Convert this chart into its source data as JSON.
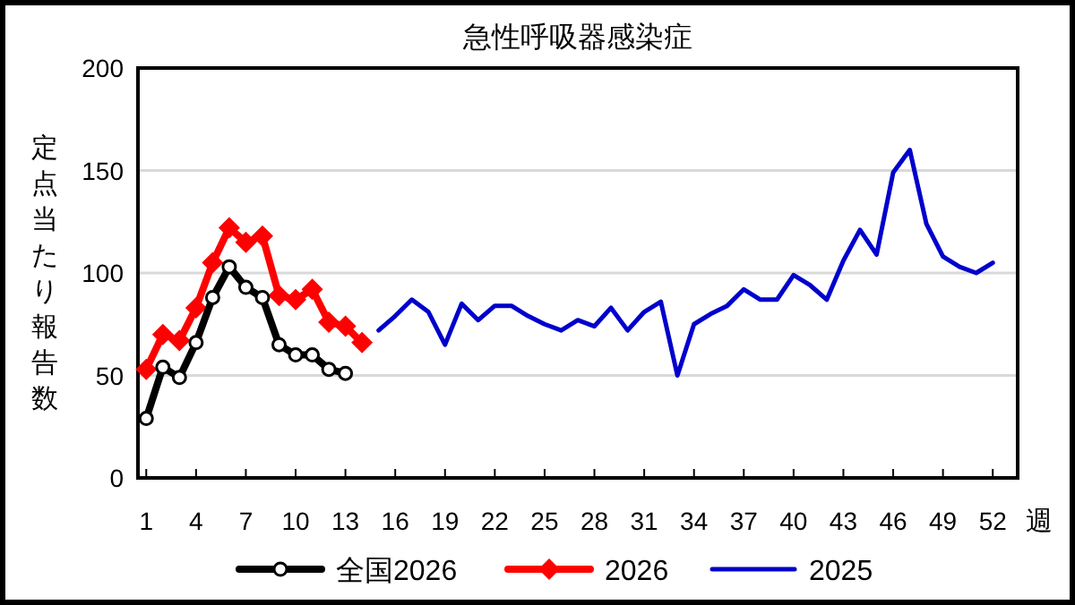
{
  "chart_data": {
    "type": "line",
    "title": "急性呼吸器感染症",
    "xlabel": "週",
    "ylabel": "定点当たり報告数",
    "xlim": [
      0.5,
      53.5
    ],
    "xticks": [
      1,
      4,
      7,
      10,
      13,
      16,
      19,
      22,
      25,
      28,
      31,
      34,
      37,
      40,
      43,
      46,
      49,
      52
    ],
    "ylim": [
      0,
      200
    ],
    "yticks": [
      0,
      50,
      100,
      150,
      200
    ],
    "grid": "y",
    "legend": "bottom",
    "series": [
      {
        "name": "全国2026",
        "color": "#000000",
        "marker": "circle",
        "x": [
          1,
          2,
          3,
          4,
          5,
          6,
          7,
          8,
          9,
          10,
          11,
          12,
          13
        ],
        "values": [
          29,
          54,
          49,
          66,
          88,
          103,
          93,
          88,
          65,
          60,
          60,
          53,
          51
        ]
      },
      {
        "name": "2026",
        "color": "#ff0000",
        "marker": "diamond",
        "x": [
          1,
          2,
          3,
          4,
          5,
          6,
          7,
          8,
          9,
          10,
          11,
          12,
          13,
          14
        ],
        "values": [
          53,
          70,
          67,
          83,
          105,
          122,
          115,
          118,
          89,
          87,
          92,
          76,
          74,
          66
        ]
      },
      {
        "name": "2025",
        "color": "#0000cc",
        "marker": "none",
        "x": [
          15,
          16,
          17,
          18,
          19,
          20,
          21,
          22,
          23,
          24,
          25,
          26,
          27,
          28,
          29,
          30,
          31,
          32,
          33,
          34,
          35,
          36,
          37,
          38,
          39,
          40,
          41,
          42,
          43,
          44,
          45,
          46,
          47,
          48,
          49,
          50,
          51,
          52
        ],
        "values": [
          72,
          79,
          87,
          81,
          65,
          85,
          77,
          84,
          84,
          79,
          75,
          72,
          77,
          74,
          83,
          72,
          81,
          86,
          50,
          75,
          80,
          84,
          92,
          87,
          87,
          99,
          94,
          87,
          106,
          121,
          109,
          149,
          160,
          124,
          108,
          103,
          100,
          105
        ]
      }
    ]
  }
}
